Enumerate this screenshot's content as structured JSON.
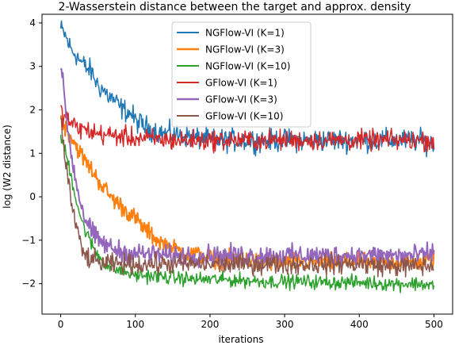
{
  "chart_data": {
    "type": "line",
    "title": "2-Wasserstein distance between the target and approx. density",
    "xlabel": "iterations",
    "ylabel": "log (W2 distance)",
    "xlim": [
      -25,
      525
    ],
    "ylim": [
      -2.7,
      4.2
    ],
    "xticks": [
      0,
      100,
      200,
      300,
      400,
      500
    ],
    "yticks": [
      -2,
      -1,
      0,
      1,
      2,
      3,
      4
    ],
    "grid": false,
    "legend_position": "top-center",
    "series": [
      {
        "name": "NGFlow-VI (K=1)",
        "color": "#1f77b4",
        "linewidth": 1.5,
        "x": [
          0,
          5,
          10,
          15,
          20,
          25,
          30,
          35,
          40,
          45,
          50,
          55,
          60,
          65,
          70,
          75,
          80,
          85,
          90,
          95,
          100,
          110,
          120,
          130,
          140,
          150,
          160,
          170,
          180,
          190,
          200,
          220,
          240,
          260,
          280,
          300,
          320,
          340,
          360,
          380,
          400,
          420,
          440,
          460,
          480,
          500
        ],
        "y": [
          3.85,
          3.75,
          3.55,
          3.35,
          3.3,
          3.15,
          3.05,
          2.95,
          2.9,
          2.75,
          2.55,
          2.5,
          2.4,
          2.3,
          2.25,
          2.15,
          2.05,
          2.0,
          1.95,
          1.9,
          1.75,
          1.65,
          1.55,
          1.5,
          1.45,
          1.45,
          1.4,
          1.4,
          1.35,
          1.35,
          1.3,
          1.3,
          1.3,
          1.3,
          1.3,
          1.3,
          1.3,
          1.3,
          1.3,
          1.3,
          1.3,
          1.3,
          1.3,
          1.3,
          1.3,
          1.2
        ],
        "noise": 0.22
      },
      {
        "name": "NGFlow-VI (K=3)",
        "color": "#ff7f0e",
        "linewidth": 2.0,
        "x": [
          0,
          5,
          10,
          15,
          20,
          25,
          30,
          40,
          50,
          60,
          70,
          80,
          90,
          100,
          110,
          120,
          130,
          140,
          150,
          170,
          190,
          200,
          220,
          240,
          260,
          280,
          300,
          320,
          340,
          360,
          380,
          400,
          420,
          440,
          460,
          480,
          500
        ],
        "y": [
          1.8,
          1.65,
          1.5,
          1.35,
          1.2,
          1.05,
          0.9,
          0.65,
          0.4,
          0.15,
          -0.05,
          -0.2,
          -0.35,
          -0.5,
          -0.7,
          -0.85,
          -1.0,
          -1.1,
          -1.2,
          -1.3,
          -1.35,
          -1.4,
          -1.45,
          -1.45,
          -1.5,
          -1.5,
          -1.5,
          -1.5,
          -1.5,
          -1.5,
          -1.5,
          -1.5,
          -1.5,
          -1.5,
          -1.5,
          -1.5,
          -1.45
        ],
        "noise": 0.18
      },
      {
        "name": "NGFlow-VI (K=10)",
        "color": "#2ca02c",
        "linewidth": 1.5,
        "x": [
          0,
          5,
          10,
          15,
          20,
          25,
          30,
          40,
          50,
          60,
          70,
          80,
          90,
          100,
          120,
          140,
          160,
          180,
          200,
          240,
          280,
          320,
          360,
          400,
          440,
          480,
          500
        ],
        "y": [
          1.4,
          1.1,
          0.8,
          0.4,
          0.0,
          -0.35,
          -0.65,
          -1.05,
          -1.35,
          -1.55,
          -1.65,
          -1.7,
          -1.75,
          -1.8,
          -1.82,
          -1.85,
          -1.87,
          -1.9,
          -1.9,
          -1.92,
          -1.95,
          -1.95,
          -1.97,
          -1.97,
          -2.0,
          -2.0,
          -2.05
        ],
        "noise": 0.14
      },
      {
        "name": "GFlow-VI (K=1)",
        "color": "#d62728",
        "linewidth": 1.5,
        "x": [
          0,
          20,
          50,
          100,
          150,
          200,
          250,
          300,
          350,
          400,
          450,
          500
        ],
        "y": [
          1.95,
          1.6,
          1.45,
          1.35,
          1.3,
          1.3,
          1.3,
          1.3,
          1.3,
          1.3,
          1.3,
          1.3
        ],
        "noise": 0.2
      },
      {
        "name": "GFlow-VI (K=3)",
        "color": "#9467bd",
        "linewidth": 2.0,
        "x": [
          0,
          5,
          10,
          15,
          20,
          25,
          30,
          35,
          40,
          45,
          50,
          60,
          70,
          80,
          90,
          100,
          120,
          140,
          160,
          200,
          240,
          280,
          320,
          360,
          400,
          440,
          480,
          500
        ],
        "y": [
          3.0,
          2.3,
          1.5,
          0.9,
          0.4,
          0.0,
          -0.35,
          -0.6,
          -0.75,
          -0.9,
          -1.0,
          -1.1,
          -1.2,
          -1.25,
          -1.3,
          -1.3,
          -1.32,
          -1.35,
          -1.35,
          -1.35,
          -1.35,
          -1.35,
          -1.35,
          -1.35,
          -1.35,
          -1.35,
          -1.35,
          -1.3
        ],
        "noise": 0.2
      },
      {
        "name": "GFlow-VI (K=10)",
        "color": "#8c564b",
        "linewidth": 1.5,
        "x": [
          0,
          5,
          10,
          15,
          20,
          25,
          30,
          40,
          50,
          60,
          70,
          80,
          100,
          120,
          140,
          160,
          200,
          240,
          280,
          320,
          360,
          400,
          440,
          480,
          500
        ],
        "y": [
          1.9,
          1.0,
          0.4,
          -0.2,
          -0.6,
          -1.0,
          -1.3,
          -1.45,
          -1.5,
          -1.55,
          -1.55,
          -1.55,
          -1.55,
          -1.55,
          -1.55,
          -1.55,
          -1.55,
          -1.55,
          -1.55,
          -1.55,
          -1.55,
          -1.55,
          -1.6,
          -1.6,
          -1.6
        ],
        "noise": 0.2
      }
    ]
  }
}
